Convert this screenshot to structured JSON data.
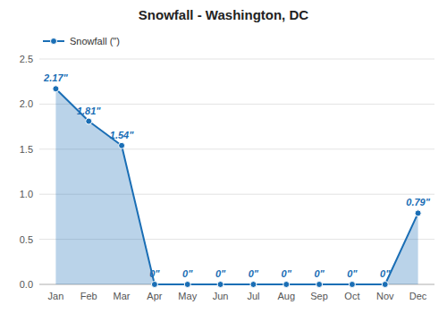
{
  "chart_data": {
    "type": "area",
    "title": "Snowfall - Washington, DC",
    "categories": [
      "Jan",
      "Feb",
      "Mar",
      "Apr",
      "May",
      "Jun",
      "Jul",
      "Aug",
      "Sep",
      "Oct",
      "Nov",
      "Dec"
    ],
    "series": [
      {
        "name": "Snowfall (\")",
        "color": "#1a6eb5",
        "marker": "circle",
        "values": [
          2.17,
          1.81,
          1.54,
          0.0,
          0.0,
          0.0,
          0.0,
          0.0,
          0.0,
          0.0,
          0.0,
          0.79
        ],
        "value_labels": [
          "2.17\"",
          "1.81\"",
          "1.54\"",
          "0\"",
          "0\"",
          "0\"",
          "0\"",
          "0\"",
          "0\"",
          "0\"",
          "0\"",
          "0.79\""
        ]
      }
    ],
    "ylim": [
      0,
      2.5
    ],
    "yticks": [
      {
        "value": 0,
        "label": "0.0"
      },
      0.5,
      {
        "value": 1,
        "label": "1.0"
      },
      1.5,
      {
        "value": 2,
        "label": "2.0"
      },
      2.5
    ],
    "grid": true,
    "legend": "upper left",
    "data_labels": true
  }
}
